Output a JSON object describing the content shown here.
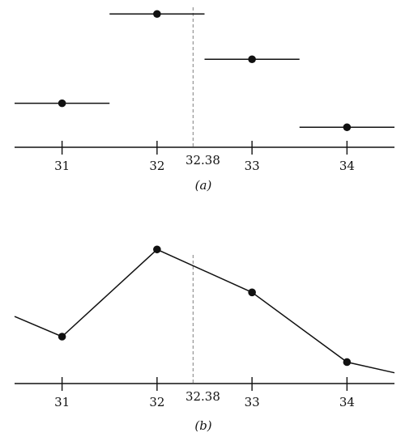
{
  "colors": {
    "ink": "#111111",
    "marker_line": "#999999",
    "background": "#ffffff"
  },
  "chart_data": [
    {
      "type": "step",
      "caption": "(a)",
      "x_ticks": [
        31,
        32,
        33,
        34
      ],
      "marker": {
        "x": 32.38,
        "label": "32.38",
        "style": "dashed"
      },
      "segments": [
        {
          "x_start": 30.5,
          "x_end": 31.5,
          "y": 0.33,
          "point_x": 31
        },
        {
          "x_start": 31.5,
          "x_end": 32.5,
          "y": 1.0,
          "point_x": 32
        },
        {
          "x_start": 32.5,
          "x_end": 33.5,
          "y": 0.66,
          "point_x": 33
        },
        {
          "x_start": 33.5,
          "x_end": 34.5,
          "y": 0.15,
          "point_x": 34
        }
      ],
      "xlim": [
        30.5,
        34.5
      ],
      "ylim": [
        0,
        1.05
      ]
    },
    {
      "type": "line",
      "caption": "(b)",
      "x_ticks": [
        31,
        32,
        33,
        34
      ],
      "marker": {
        "x": 32.38,
        "label": "32.38",
        "style": "dashed"
      },
      "points": [
        {
          "x": 31,
          "y": 0.35
        },
        {
          "x": 32,
          "y": 1.0
        },
        {
          "x": 33,
          "y": 0.68
        },
        {
          "x": 34,
          "y": 0.16
        }
      ],
      "line_start": {
        "x": 30.5,
        "y": 0.5
      },
      "line_end": {
        "x": 34.5,
        "y": 0.08
      },
      "xlim": [
        30.5,
        34.5
      ],
      "ylim": [
        0,
        1.05
      ]
    }
  ]
}
